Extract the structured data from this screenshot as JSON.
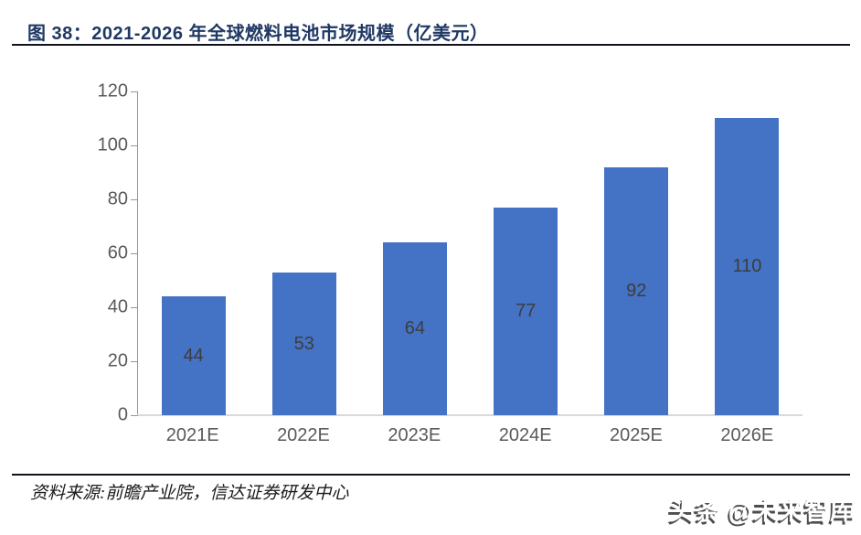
{
  "header": {
    "title": "图 38：2021-2026 年全球燃料电池市场规模（亿美元）"
  },
  "chart_data": {
    "type": "bar",
    "title": "2021-2026 年全球燃料电池市场规模（亿美元）",
    "categories": [
      "2021E",
      "2022E",
      "2023E",
      "2024E",
      "2025E",
      "2026E"
    ],
    "values": [
      44,
      53,
      64,
      77,
      92,
      110
    ],
    "xlabel": "",
    "ylabel": "",
    "ylim": [
      0,
      120
    ],
    "yticks": [
      0,
      20,
      40,
      60,
      80,
      100,
      120
    ],
    "grid": false,
    "legend": "none",
    "data_label_position": "inside-center",
    "colors": {
      "bar_fill": "#4472C4",
      "data_label": "#3d3d3d",
      "axis_line": "#969696",
      "baseline": "#d9d9d9",
      "tick_label": "#595959",
      "title": "#1F3864"
    }
  },
  "footer": {
    "source": "资料来源:前瞻产业院，信达证券研发中心",
    "watermark": "头条 @未来智库"
  }
}
